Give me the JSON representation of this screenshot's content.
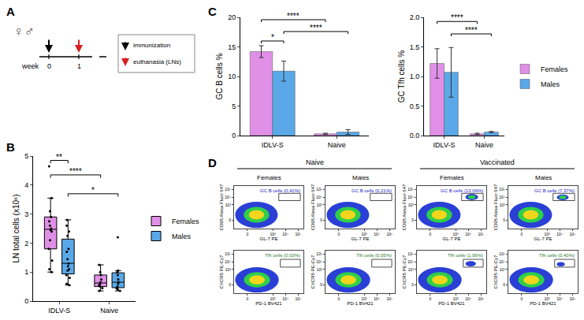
{
  "diagram": {
    "panel": "A",
    "symbols": "♀♂",
    "axis_label": "week",
    "marks": [
      {
        "text": "0",
        "event": "immunization"
      },
      {
        "text": "1",
        "event": "euthanasia (LNs)"
      }
    ],
    "key": [
      {
        "label": "immunization",
        "color": "#000000"
      },
      {
        "label": "euthanasia (LNs)",
        "color": "#d62020"
      }
    ]
  },
  "chart_data": [
    {
      "panel": "B",
      "type": "box",
      "ylabel": "LN total cells (x10⁶)",
      "categories": [
        "IDLV-S",
        "Naive"
      ],
      "series": [
        {
          "name": "Females",
          "color": "#e08fe6",
          "values": [
            [
              4.65,
              3.55,
              3.1,
              2.9,
              2.75,
              2.6,
              2.5,
              2.45,
              2.4,
              2.1,
              1.8,
              1.4,
              1.1,
              1.0
            ],
            [
              1.25,
              1.0,
              0.9,
              0.75,
              0.65,
              0.6,
              0.55,
              0.5,
              0.45,
              0.35
            ]
          ]
        },
        {
          "name": "Males",
          "color": "#5aa8e8",
          "values": [
            [
              2.8,
              2.6,
              2.4,
              2.25,
              1.8,
              1.7,
              1.45,
              1.3,
              1.2,
              1.1,
              1.05,
              0.9,
              0.8,
              0.6,
              0.55
            ],
            [
              2.2,
              1.05,
              1.0,
              0.9,
              0.75,
              0.65,
              0.6,
              0.5,
              0.45,
              0.4,
              0.35
            ]
          ]
        }
      ],
      "ylim": [
        0,
        5
      ],
      "yticks": [
        0,
        1,
        2,
        3,
        4,
        5
      ],
      "legend": "right",
      "comparisons": [
        {
          "from": [
            "IDLV-S",
            "Females"
          ],
          "to": [
            "IDLV-S",
            "Males"
          ],
          "y": 4.85,
          "label": "**"
        },
        {
          "from": [
            "IDLV-S",
            "Females"
          ],
          "to": [
            "Naive",
            "Females"
          ],
          "y": 4.35,
          "label": "****"
        },
        {
          "from": [
            "IDLV-S",
            "Males"
          ],
          "to": [
            "Naive",
            "Males"
          ],
          "y": 3.7,
          "label": "*"
        }
      ]
    },
    {
      "panel": "C",
      "type": "bar",
      "ylabel": "GC B cells %",
      "categories": [
        "IDLV-S",
        "Naive"
      ],
      "series": [
        {
          "name": "Females",
          "color": "#e08fe6",
          "values": [
            14.2,
            0.3
          ],
          "errors": [
            1.0,
            0.1
          ]
        },
        {
          "name": "Males",
          "color": "#5aa8e8",
          "values": [
            10.9,
            0.6
          ],
          "errors": [
            1.7,
            0.4
          ]
        }
      ],
      "ylim": [
        0,
        20
      ],
      "yticks": [
        0,
        5,
        10,
        15,
        20
      ],
      "comparisons": [
        {
          "from": [
            "IDLV-S",
            "Females"
          ],
          "to": [
            "IDLV-S",
            "Males"
          ],
          "y": 16.0,
          "label": "*"
        },
        {
          "from": [
            "IDLV-S",
            "Males"
          ],
          "to": [
            "Naive",
            "Males"
          ],
          "y": 17.6,
          "label": "****"
        },
        {
          "from": [
            "IDLV-S",
            "Females"
          ],
          "to": [
            "Naive",
            "Females"
          ],
          "y": 19.6,
          "label": "****"
        }
      ]
    },
    {
      "type": "bar",
      "ylabel": "GC Tfh cells %",
      "categories": [
        "IDLV-S",
        "Naive"
      ],
      "series": [
        {
          "name": "Females",
          "color": "#e08fe6",
          "values": [
            1.22,
            0.03
          ],
          "errors": [
            0.25,
            0.01
          ]
        },
        {
          "name": "Males",
          "color": "#5aa8e8",
          "values": [
            1.07,
            0.06
          ],
          "errors": [
            0.42,
            0.01
          ]
        }
      ],
      "ylim": [
        0,
        2
      ],
      "yticks": [
        {
          "value": 0,
          "label": "0.0"
        },
        {
          "value": 0.5,
          "label": "0.5"
        },
        {
          "value": 1,
          "label": "1.0"
        },
        {
          "value": 1.5,
          "label": "1.5"
        },
        {
          "value": 2,
          "label": "2.0"
        }
      ],
      "legend": "right",
      "comparisons": [
        {
          "from": [
            "IDLV-S",
            "Males"
          ],
          "to": [
            "Naive",
            "Males"
          ],
          "y": 1.72,
          "label": "****"
        },
        {
          "from": [
            "IDLV-S",
            "Females"
          ],
          "to": [
            "Naive",
            "Females"
          ],
          "y": 1.93,
          "label": "****"
        }
      ]
    },
    {
      "panel": "D",
      "type": "flow",
      "groups": [
        {
          "title": "Naive",
          "columns": [
            "Females",
            "Males"
          ]
        },
        {
          "title": "Vaccinated",
          "columns": [
            "Females",
            "Males"
          ]
        }
      ],
      "xlim": [
        -100,
        262144
      ],
      "ylim": [
        -100,
        262144
      ],
      "xticks": [
        0,
        {
          "value": 1000,
          "label": "10³"
        },
        {
          "value": 10000,
          "label": "10⁴"
        },
        {
          "value": 100000,
          "label": "10⁵"
        }
      ],
      "yticks": [
        0,
        {
          "value": 1000,
          "label": "10³"
        },
        {
          "value": 10000,
          "label": "10⁴"
        },
        {
          "value": 100000,
          "label": "10⁵"
        }
      ],
      "rows": [
        {
          "xlabel": "GL-7 PE",
          "ylabel": "CD95 Alexa Fluor 647",
          "color": "#2323c8",
          "gate": {
            "x": [
              3000,
              150000
            ],
            "y": [
              3500,
              30000
            ]
          },
          "plots": [
            {
              "label": "GC B cells (0,41%)",
              "populations": [
                {
                  "x": [
                    -80,
                    2500
                  ],
                  "y": [
                    -80,
                    2500
                  ],
                  "colors": [
                    "#2a3fd6",
                    "#2fcf4a",
                    "#f3d51c"
                  ]
                }
              ]
            },
            {
              "label": "GC B cells (0,21%)",
              "populations": [
                {
                  "x": [
                    -80,
                    2500
                  ],
                  "y": [
                    -80,
                    2500
                  ],
                  "colors": [
                    "#2a3fd6",
                    "#2fcf4a",
                    "#f3d51c"
                  ]
                }
              ]
            },
            {
              "label": "GC B cells (13,06%)",
              "populations": [
                {
                  "x": [
                    -80,
                    2500
                  ],
                  "y": [
                    -80,
                    2500
                  ],
                  "colors": [
                    "#2a3fd6",
                    "#2fcf4a",
                    "#f3d51c"
                  ]
                },
                {
                  "x": [
                    6000,
                    60000
                  ],
                  "y": [
                    4000,
                    25000
                  ],
                  "colors": [
                    "#2a3fd6",
                    "#2fcf4a"
                  ]
                }
              ]
            },
            {
              "label": "GC B cells (7,37%)",
              "populations": [
                {
                  "x": [
                    -80,
                    2500
                  ],
                  "y": [
                    -80,
                    2500
                  ],
                  "colors": [
                    "#2a3fd6",
                    "#2fcf4a",
                    "#f3d51c"
                  ]
                },
                {
                  "x": [
                    6000,
                    50000
                  ],
                  "y": [
                    4000,
                    22000
                  ],
                  "colors": [
                    "#2a3fd6",
                    "#2fcf4a"
                  ]
                }
              ]
            }
          ]
        },
        {
          "xlabel": "PD-1 BV421",
          "ylabel": "CXCR5 PE-Cy7",
          "color": "#2e7d32",
          "gate": {
            "x": [
              4000,
              150000
            ],
            "y": [
              2000,
              20000
            ]
          },
          "plots": [
            {
              "label": "Tfh cells (0,03%)",
              "populations": [
                {
                  "x": [
                    -80,
                    3000
                  ],
                  "y": [
                    -80,
                    2000
                  ],
                  "colors": [
                    "#2a3fd6",
                    "#2fcf4a",
                    "#f3d51c"
                  ]
                }
              ]
            },
            {
              "label": "Tfh cells (0,05%)",
              "populations": [
                {
                  "x": [
                    -80,
                    3000
                  ],
                  "y": [
                    -80,
                    2000
                  ],
                  "colors": [
                    "#2a3fd6",
                    "#2fcf4a",
                    "#f3d51c"
                  ]
                }
              ]
            },
            {
              "label": "Tfh cells (1,06%)",
              "populations": [
                {
                  "x": [
                    -80,
                    3000
                  ],
                  "y": [
                    -80,
                    2000
                  ],
                  "colors": [
                    "#2a3fd6",
                    "#2fcf4a",
                    "#f3d51c"
                  ]
                },
                {
                  "x": [
                    6000,
                    40000
                  ],
                  "y": [
                    2500,
                    12000
                  ],
                  "colors": [
                    "#2a3fd6"
                  ]
                }
              ]
            },
            {
              "label": "Tfh cells (0,40%)",
              "populations": [
                {
                  "x": [
                    -80,
                    3000
                  ],
                  "y": [
                    -80,
                    2000
                  ],
                  "colors": [
                    "#2a3fd6",
                    "#2fcf4a",
                    "#f3d51c"
                  ]
                },
                {
                  "x": [
                    6000,
                    25000
                  ],
                  "y": [
                    2500,
                    9000
                  ],
                  "colors": [
                    "#2a3fd6"
                  ]
                }
              ]
            }
          ]
        }
      ]
    }
  ]
}
